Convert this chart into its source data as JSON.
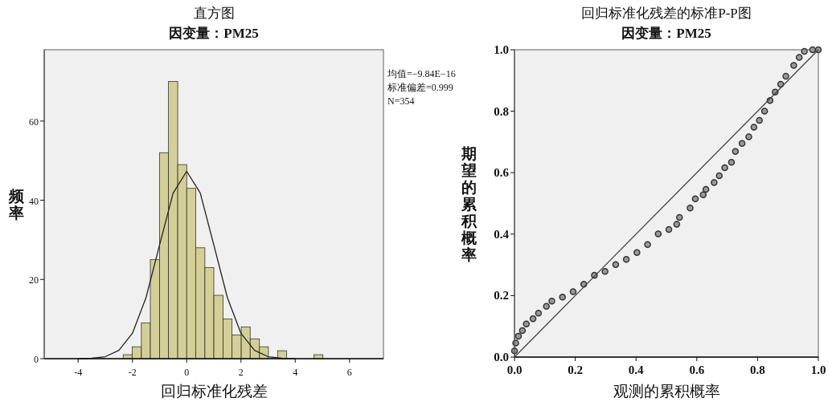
{
  "chart_data": [
    {
      "type": "histogram",
      "title": "直方图",
      "subtitle": "因变量：PM25",
      "xlabel": "回归标准化残差",
      "ylabel": "频率",
      "bins": [
        -2.34,
        -2.01,
        -1.67,
        -1.34,
        -1.0,
        -0.67,
        -0.33,
        0,
        0.33,
        0.67,
        1.0,
        1.34,
        1.67,
        2.01,
        2.34,
        2.68,
        3.01,
        3.35,
        3.68,
        4.02,
        4.35,
        4.69,
        5.02
      ],
      "values": [
        1,
        3,
        9,
        25,
        52,
        70,
        49,
        43,
        28,
        23,
        16,
        10,
        6,
        8,
        5,
        3,
        0,
        2,
        0,
        0,
        0,
        1
      ],
      "color": "#d4cf96",
      "series": [
        {
          "type": "line",
          "color": "#222222",
          "x": [
            -4,
            -3.5,
            -3,
            -2.5,
            -2,
            -1.5,
            -1,
            -0.5,
            0,
            0.5,
            1,
            1.5,
            2,
            2.5,
            3,
            3.5,
            4
          ],
          "values": [
            0,
            0.1,
            0.5,
            2.1,
            6.4,
            15.4,
            28.7,
            41.8,
            47.3,
            41.8,
            28.7,
            15.4,
            6.4,
            2.1,
            0.5,
            0.1,
            0
          ]
        }
      ],
      "xlim": [
        -5.25,
        7.25
      ],
      "ylim": [
        0,
        78
      ],
      "xticks": [
        -4,
        -2,
        0,
        2,
        4,
        6
      ],
      "yticks": [
        0,
        20,
        40,
        60
      ],
      "annotations": [
        "均值=−9.84E−16",
        "标准偏差=0.999",
        "N=354"
      ]
    },
    {
      "type": "scatter",
      "title": "回归标准化残差的标准P-P图",
      "subtitle": "因变量：PM25",
      "xlabel": "观测的累积概率",
      "ylabel": "期望的累积概率",
      "series": [
        {
          "type": "scatter",
          "marker": "circle",
          "color": "#333333",
          "x": [
            0,
            0.004,
            0.013,
            0.026,
            0.039,
            0.061,
            0.079,
            0.105,
            0.123,
            0.158,
            0.193,
            0.228,
            0.263,
            0.298,
            0.333,
            0.368,
            0.403,
            0.438,
            0.473,
            0.508,
            0.534,
            0.543,
            0.578,
            0.595,
            0.621,
            0.63,
            0.657,
            0.674,
            0.692,
            0.714,
            0.727,
            0.749,
            0.771,
            0.788,
            0.806,
            0.823,
            0.841,
            0.858,
            0.876,
            0.893,
            0.919,
            0.937,
            0.954,
            0.981,
            1
          ],
          "values": [
            0.02,
            0.046,
            0.068,
            0.086,
            0.108,
            0.125,
            0.143,
            0.165,
            0.182,
            0.195,
            0.213,
            0.237,
            0.266,
            0.279,
            0.301,
            0.318,
            0.34,
            0.366,
            0.401,
            0.415,
            0.432,
            0.454,
            0.485,
            0.515,
            0.528,
            0.546,
            0.568,
            0.59,
            0.616,
            0.634,
            0.669,
            0.695,
            0.717,
            0.748,
            0.77,
            0.8,
            0.835,
            0.862,
            0.888,
            0.914,
            0.949,
            0.975,
            0.995,
            1.0,
            1.0
          ]
        },
        {
          "type": "line",
          "color": "#444444",
          "x": [
            0,
            1
          ],
          "values": [
            0,
            1
          ]
        }
      ],
      "xlim": [
        0,
        1
      ],
      "ylim": [
        0,
        1
      ],
      "xticks": [
        {
          "value": 0,
          "label": "0.0"
        },
        {
          "value": 0.2,
          "label": "0.2"
        },
        {
          "value": 0.4,
          "label": "0.4"
        },
        {
          "value": 0.6,
          "label": "0.6"
        },
        {
          "value": 0.8,
          "label": "0.8"
        },
        {
          "value": 1,
          "label": "1.0"
        }
      ],
      "yticks": [
        {
          "value": 0,
          "label": "0.0"
        },
        {
          "value": 0.2,
          "label": "0.2"
        },
        {
          "value": 0.4,
          "label": "0.4"
        },
        {
          "value": 0.6,
          "label": "0.6"
        },
        {
          "value": 0.8,
          "label": "0.8"
        },
        {
          "value": 1,
          "label": "1.0"
        }
      ]
    }
  ]
}
